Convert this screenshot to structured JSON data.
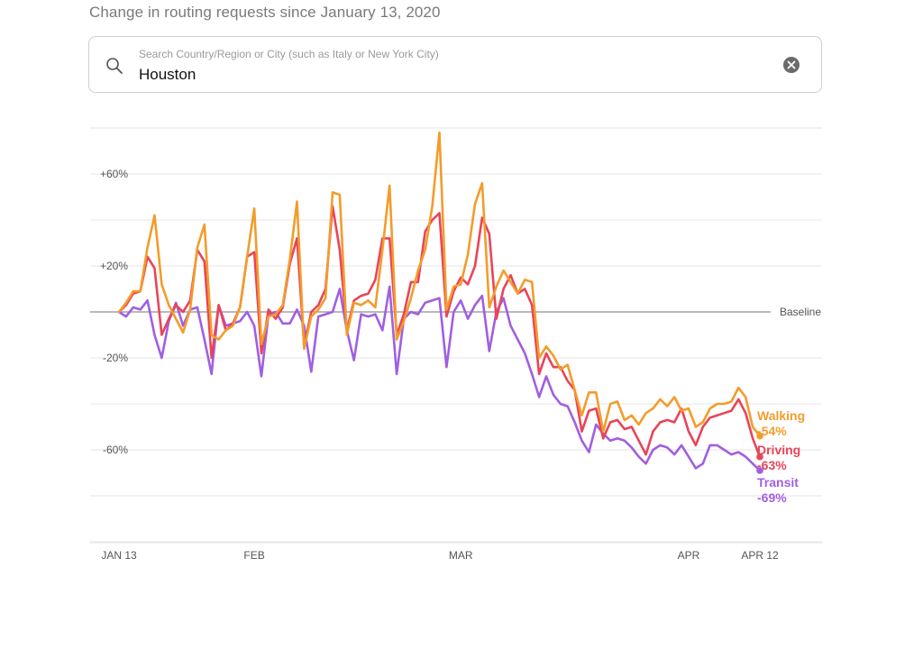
{
  "header": {
    "title": "Change in routing requests since January 13, 2020"
  },
  "search": {
    "placeholder": "Search Country/Region or City (such as Italy or New York City)",
    "value": "Houston",
    "icon": "search-icon",
    "clear_icon": "clear-icon"
  },
  "chart_data": {
    "type": "line",
    "title": "",
    "xlabel": "",
    "ylabel": "",
    "x_tick_labels": [
      "JAN 13",
      "FEB",
      "MAR",
      "APR",
      "APR 12"
    ],
    "x_tick_days": [
      0,
      19,
      48,
      80,
      90
    ],
    "y_ticks": [
      60,
      20,
      -20,
      -60
    ],
    "y_tick_labels": [
      "+60%",
      "+20%",
      "-20%",
      "-60%"
    ],
    "ylim": [
      -100,
      80
    ],
    "grid": true,
    "baseline_label": "Baseline",
    "series": [
      {
        "name": "Walking",
        "end_label": "-54%",
        "color": "#F39C2B",
        "values": [
          0,
          4,
          9,
          9,
          28,
          42,
          12,
          3,
          -3,
          -9,
          1,
          28,
          38,
          -10,
          -12,
          -8,
          -6,
          2,
          24,
          45,
          -14,
          -2,
          -1,
          3,
          23,
          48,
          -16,
          -2,
          1,
          6,
          52,
          51,
          -10,
          4,
          3,
          5,
          2,
          27,
          55,
          -12,
          -4,
          6,
          18,
          27,
          46,
          78,
          1,
          11,
          12,
          25,
          47,
          56,
          2,
          11,
          18,
          13,
          8,
          14,
          13,
          -20,
          -15,
          -19,
          -25,
          -23,
          -34,
          -45,
          -35,
          -35,
          -52,
          -40,
          -39,
          -47,
          -45,
          -49,
          -44,
          -42,
          -38,
          -41,
          -37,
          -43,
          -42,
          -50,
          -48,
          -42,
          -40,
          -40,
          -39,
          -33,
          -37,
          -50,
          -54
        ]
      },
      {
        "name": "Driving",
        "end_label": "-63%",
        "color": "#E94458",
        "values": [
          0,
          3,
          8,
          9,
          24,
          19,
          -10,
          -3,
          3,
          0,
          5,
          27,
          22,
          -20,
          3,
          -8,
          -5,
          2,
          24,
          26,
          -18,
          1,
          -3,
          2,
          21,
          32,
          -15,
          0,
          3,
          10,
          46,
          27,
          -8,
          5,
          7,
          8,
          14,
          32,
          32,
          -10,
          -1,
          13,
          13,
          35,
          40,
          43,
          -2,
          9,
          15,
          12,
          20,
          41,
          34,
          -3,
          10,
          16,
          8,
          10,
          3,
          -27,
          -18,
          -24,
          -24,
          -30,
          -34,
          -52,
          -43,
          -42,
          -55,
          -48,
          -47,
          -51,
          -50,
          -56,
          -62,
          -52,
          -48,
          -47,
          -48,
          -42,
          -52,
          -58,
          -50,
          -46,
          -45,
          -44,
          -43,
          -38,
          -44,
          -55,
          -63
        ]
      },
      {
        "name": "Transit",
        "end_label": "-69%",
        "color": "#A15FE0",
        "values": [
          0,
          -2,
          2,
          1,
          5,
          -10,
          -20,
          -4,
          4,
          -6,
          1,
          2,
          -12,
          -27,
          3,
          -6,
          -5,
          -4,
          0,
          -6,
          -28,
          -1,
          0,
          -5,
          -5,
          1,
          -6,
          -26,
          -2,
          -1,
          0,
          10,
          -8,
          -21,
          -1,
          -2,
          -1,
          -8,
          11,
          -27,
          -3,
          0,
          -1,
          4,
          5,
          6,
          -24,
          0,
          5,
          -3,
          3,
          7,
          -17,
          0,
          6,
          -6,
          -12,
          -18,
          -27,
          -37,
          -28,
          -36,
          -40,
          -41,
          -48,
          -56,
          -61,
          -49,
          -53,
          -56,
          -55,
          -56,
          -59,
          -63,
          -66,
          -60,
          -58,
          -59,
          -62,
          -58,
          -63,
          -68,
          -66,
          -58,
          -58,
          -60,
          -62,
          -61,
          -63,
          -66,
          -69
        ]
      }
    ]
  }
}
